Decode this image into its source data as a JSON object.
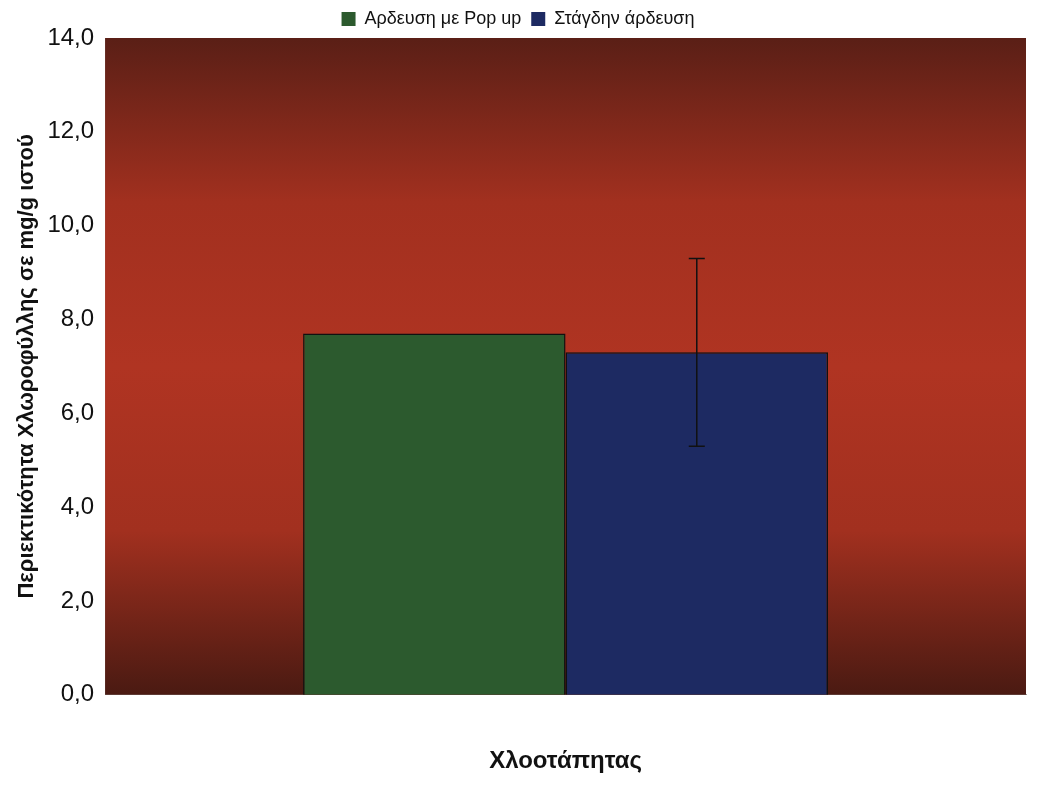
{
  "chart_data": {
    "type": "bar",
    "xlabel": "Χλοοτάπητας",
    "ylabel": "Περιεκτικότητα Χλωροφύλλης σε mg/g ιστού",
    "categories": [
      null
    ],
    "series": [
      {
        "name": "Αρδευση με Pop up",
        "color": "#2c5a2e",
        "values": [
          7.7
        ]
      },
      {
        "name": "Στάγδην άρδευση",
        "color": "#1d2a62",
        "values": [
          7.3
        ],
        "errors": [
          2.0
        ]
      }
    ],
    "ylim": [
      0,
      14
    ],
    "yticks": [
      {
        "value": 0,
        "label": "0,0"
      },
      {
        "value": 2,
        "label": "2,0"
      },
      {
        "value": 4,
        "label": "4,0"
      },
      {
        "value": 6,
        "label": "6,0"
      },
      {
        "value": 8,
        "label": "8,0"
      },
      {
        "value": 10,
        "label": "10,0"
      },
      {
        "value": 12,
        "label": "12,0"
      },
      {
        "value": 14,
        "label": "14,0"
      }
    ],
    "grid": false,
    "legend": "top"
  }
}
